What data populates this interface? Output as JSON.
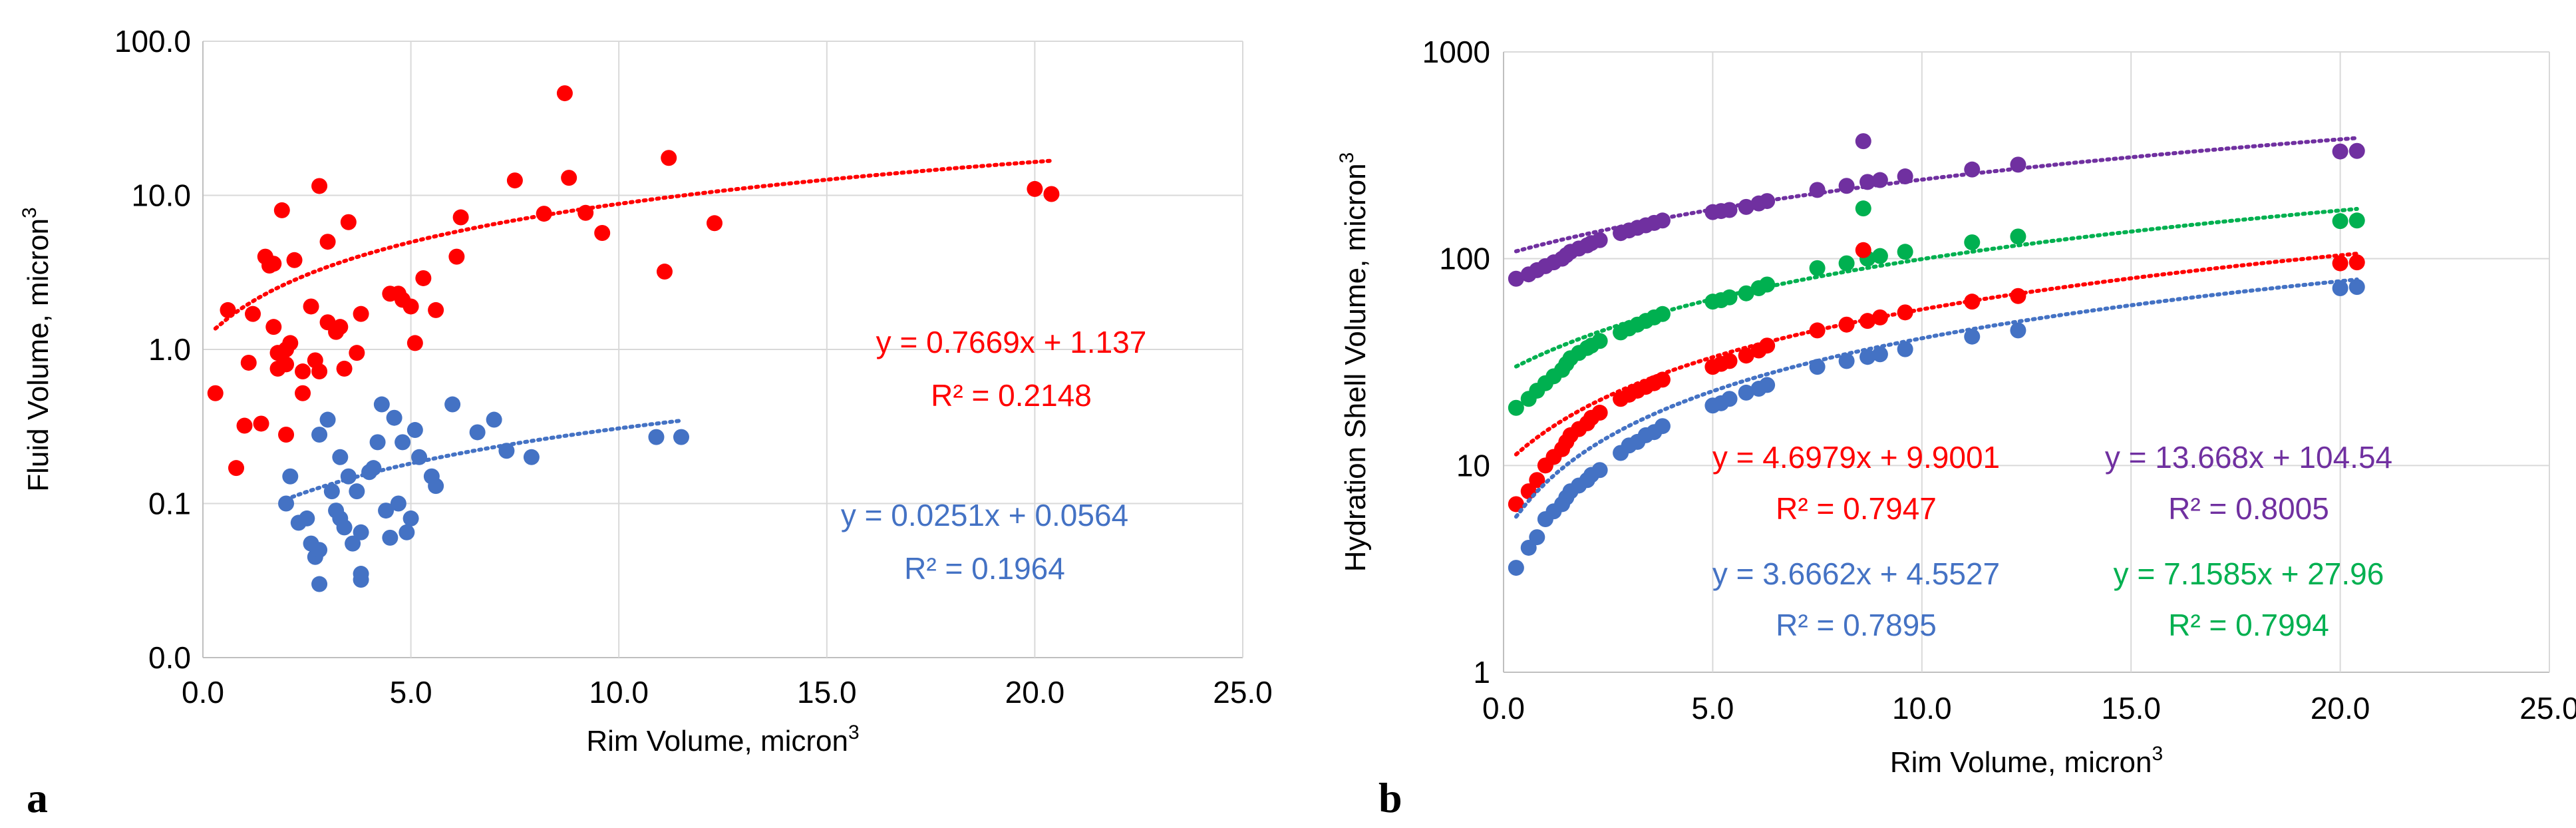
{
  "chart_data": [
    {
      "type": "scatter",
      "panel_label": "a",
      "title": "",
      "xlabel": "Rim Volume, micron",
      "xlabel_sup": "3",
      "ylabel": "Fluid Volume, micron",
      "ylabel_sup": "3",
      "xscale": "linear",
      "yscale": "log-like (0 at bottom, 0.1, 1.0, 10.0, 100.0)",
      "xlim": [
        0,
        25
      ],
      "x_ticks": [
        0,
        5,
        10,
        15,
        20,
        25
      ],
      "x_tick_labels": [
        "0.0",
        "5.0",
        "10.0",
        "15.0",
        "20.0",
        "25.0"
      ],
      "y_ticks": [
        0,
        0.1,
        1,
        10,
        100
      ],
      "y_tick_labels": [
        "0.0",
        "0.1",
        "1.0",
        "10.0",
        "100.0"
      ],
      "grid": true,
      "series": [
        {
          "name": "red",
          "color": "#ff0000",
          "points": [
            [
              0.3,
              0.52
            ],
            [
              0.6,
              1.8
            ],
            [
              0.8,
              0.17
            ],
            [
              1.0,
              0.32
            ],
            [
              1.1,
              0.82
            ],
            [
              1.2,
              1.7
            ],
            [
              1.4,
              0.33
            ],
            [
              1.5,
              4.0
            ],
            [
              1.6,
              3.5
            ],
            [
              1.7,
              1.4
            ],
            [
              1.7,
              3.6
            ],
            [
              1.8,
              0.75
            ],
            [
              1.8,
              0.95
            ],
            [
              1.9,
              8.0
            ],
            [
              2.0,
              0.8
            ],
            [
              2.0,
              1.0
            ],
            [
              2.0,
              0.28
            ],
            [
              2.1,
              1.1
            ],
            [
              2.2,
              3.8
            ],
            [
              2.4,
              0.52
            ],
            [
              2.4,
              0.72
            ],
            [
              2.6,
              1.9
            ],
            [
              2.7,
              0.85
            ],
            [
              2.8,
              0.72
            ],
            [
              2.8,
              11.5
            ],
            [
              3.0,
              5.0
            ],
            [
              3.0,
              1.5
            ],
            [
              3.2,
              1.3
            ],
            [
              3.3,
              1.4
            ],
            [
              3.4,
              0.75
            ],
            [
              3.5,
              6.7
            ],
            [
              3.7,
              0.95
            ],
            [
              3.8,
              1.7
            ],
            [
              4.5,
              2.3
            ],
            [
              4.7,
              2.3
            ],
            [
              4.8,
              2.1
            ],
            [
              5.0,
              1.9
            ],
            [
              5.1,
              1.1
            ],
            [
              5.3,
              2.9
            ],
            [
              5.6,
              1.8
            ],
            [
              6.1,
              4.0
            ],
            [
              6.2,
              7.2
            ],
            [
              7.5,
              12.5
            ],
            [
              8.2,
              7.6
            ],
            [
              8.7,
              46.0
            ],
            [
              8.8,
              13.0
            ],
            [
              9.2,
              7.7
            ],
            [
              9.6,
              5.7
            ],
            [
              11.1,
              3.2
            ],
            [
              11.2,
              17.5
            ],
            [
              12.3,
              6.6
            ],
            [
              20.0,
              11.0
            ],
            [
              20.4,
              10.2
            ]
          ]
        },
        {
          "name": "blue",
          "color": "#4472c4",
          "points": [
            [
              2.0,
              0.1
            ],
            [
              2.1,
              0.15
            ],
            [
              2.3,
              0.075
            ],
            [
              2.5,
              0.08
            ],
            [
              2.6,
              0.055
            ],
            [
              2.7,
              0.045
            ],
            [
              2.8,
              0.05
            ],
            [
              2.8,
              0.28
            ],
            [
              2.8,
              0.03
            ],
            [
              3.0,
              0.35
            ],
            [
              3.1,
              0.12
            ],
            [
              3.2,
              0.09
            ],
            [
              3.3,
              0.2
            ],
            [
              3.3,
              0.08
            ],
            [
              3.4,
              0.07
            ],
            [
              3.5,
              0.15
            ],
            [
              3.6,
              0.055
            ],
            [
              3.7,
              0.12
            ],
            [
              3.8,
              0.065
            ],
            [
              3.8,
              0.035
            ],
            [
              3.8,
              0.032
            ],
            [
              4.0,
              0.16
            ],
            [
              4.1,
              0.17
            ],
            [
              4.2,
              0.25
            ],
            [
              4.3,
              0.44
            ],
            [
              4.4,
              0.09
            ],
            [
              4.5,
              0.06
            ],
            [
              4.6,
              0.36
            ],
            [
              4.7,
              0.1
            ],
            [
              4.8,
              0.25
            ],
            [
              4.9,
              0.065
            ],
            [
              5.0,
              0.08
            ],
            [
              5.1,
              0.3
            ],
            [
              5.2,
              0.2
            ],
            [
              5.5,
              0.15
            ],
            [
              5.6,
              0.13
            ],
            [
              6.0,
              0.44
            ],
            [
              6.6,
              0.29
            ],
            [
              7.0,
              0.35
            ],
            [
              7.3,
              0.22
            ],
            [
              7.9,
              0.2
            ],
            [
              10.9,
              0.27
            ],
            [
              11.5,
              0.27
            ]
          ]
        }
      ],
      "trendlines": [
        {
          "series": "red",
          "color": "#ff0000",
          "slope": 0.7669,
          "intercept": 1.137,
          "x_range": [
            0.3,
            20.4
          ],
          "equation": "y = 0.7669x + 1.137",
          "r2": "R² = 0.2148"
        },
        {
          "series": "blue",
          "color": "#4472c4",
          "slope": 0.0251,
          "intercept": 0.0564,
          "x_range": [
            2.0,
            11.5
          ],
          "equation": "y = 0.0251x + 0.0564",
          "r2": "R² = 0.1964"
        }
      ]
    },
    {
      "type": "scatter",
      "panel_label": "b",
      "title": "",
      "xlabel": "Rim Volume, micron",
      "xlabel_sup": "3",
      "ylabel": "Hydration Shell Volume, micron",
      "ylabel_sup": "3",
      "xscale": "linear",
      "yscale": "log",
      "xlim": [
        0,
        25
      ],
      "ylim": [
        1,
        1000
      ],
      "x_ticks": [
        0,
        5,
        10,
        15,
        20,
        25
      ],
      "x_tick_labels": [
        "0.0",
        "5.0",
        "10.0",
        "15.0",
        "20.0",
        "25.0"
      ],
      "y_ticks": [
        1,
        10,
        100,
        1000
      ],
      "y_tick_labels": [
        "1",
        "10",
        "100",
        "1000"
      ],
      "grid": true,
      "x_values": [
        0.3,
        0.6,
        0.8,
        1.0,
        1.2,
        1.4,
        1.5,
        1.6,
        1.8,
        2.0,
        2.1,
        2.3,
        2.8,
        3.0,
        3.2,
        3.4,
        3.6,
        3.8,
        5.0,
        5.2,
        5.4,
        5.8,
        6.1,
        6.3,
        7.5,
        8.2,
        8.7,
        9.0,
        9.6,
        11.2,
        12.3,
        20.0,
        20.4
      ],
      "series": [
        {
          "name": "blue",
          "color": "#4472c4",
          "values": [
            3.2,
            4.0,
            4.5,
            5.5,
            6.0,
            6.5,
            7.0,
            7.5,
            8.0,
            8.5,
            9.0,
            9.5,
            11.5,
            12.5,
            13.0,
            14.0,
            14.5,
            15.5,
            19.5,
            20.0,
            21.0,
            22.5,
            23.5,
            24.5,
            30.0,
            32.0,
            33.5,
            34.5,
            36.5,
            42.0,
            45.0,
            72.0,
            73.0
          ]
        },
        {
          "name": "red",
          "color": "#ff0000",
          "values": [
            6.5,
            7.5,
            8.5,
            10.0,
            11.0,
            12.0,
            13.0,
            14.0,
            15.0,
            16.0,
            17.0,
            18.0,
            21.0,
            22.0,
            23.0,
            24.0,
            25.0,
            26.0,
            30.0,
            31.0,
            32.0,
            34.0,
            36.0,
            38.0,
            45.0,
            48.0,
            50.0,
            52.0,
            55.0,
            62.0,
            66.0,
            95.0,
            96.0
          ]
        },
        {
          "name": "green",
          "color": "#00b050",
          "values": [
            19.0,
            21.0,
            23.0,
            25.0,
            27.0,
            29.0,
            31.0,
            33.0,
            35.0,
            37.0,
            38.0,
            40.0,
            44.0,
            46.0,
            48.0,
            50.0,
            52.0,
            54.0,
            62.0,
            63.0,
            65.0,
            68.0,
            72.0,
            75.0,
            90.0,
            95.0,
            100.0,
            103.0,
            108.0,
            120.0,
            128.0,
            152.0,
            153.0
          ]
        },
        {
          "name": "purple",
          "color": "#7030a0",
          "values": [
            80.0,
            84.0,
            88.0,
            92.0,
            96.0,
            100.0,
            104.0,
            108.0,
            112.0,
            116.0,
            119.0,
            123.0,
            133.0,
            137.0,
            141.0,
            145.0,
            149.0,
            153.0,
            168.0,
            170.0,
            172.0,
            178.0,
            185.0,
            190.0,
            215.0,
            225.0,
            235.0,
            240.0,
            250.0,
            270.0,
            285.0,
            330.0,
            332.0
          ]
        }
      ],
      "outliers": [
        {
          "series": "purple",
          "x": 8.6,
          "y": 370
        },
        {
          "series": "green",
          "x": 8.6,
          "y": 175
        },
        {
          "series": "red",
          "x": 8.6,
          "y": 110
        }
      ],
      "trendlines": [
        {
          "series": "red",
          "color": "#ff0000",
          "slope": 4.6979,
          "intercept": 9.9001,
          "x_range": [
            0.3,
            20.4
          ],
          "equation": "y = 4.6979x + 9.9001",
          "r2": "R² = 0.7947"
        },
        {
          "series": "purple",
          "color": "#7030a0",
          "slope": 13.668,
          "intercept": 104.54,
          "x_range": [
            0.3,
            20.4
          ],
          "equation": "y = 13.668x + 104.54",
          "r2": "R² = 0.8005"
        },
        {
          "series": "blue",
          "color": "#4472c4",
          "slope": 3.6662,
          "intercept": 4.5527,
          "x_range": [
            0.3,
            20.4
          ],
          "equation": "y = 3.6662x + 4.5527",
          "r2": "R² = 0.7895"
        },
        {
          "series": "green",
          "color": "#00b050",
          "slope": 7.1585,
          "intercept": 27.96,
          "x_range": [
            0.3,
            20.4
          ],
          "equation": "y = 7.1585x + 27.96",
          "r2": "R² = 0.7994"
        }
      ]
    }
  ]
}
